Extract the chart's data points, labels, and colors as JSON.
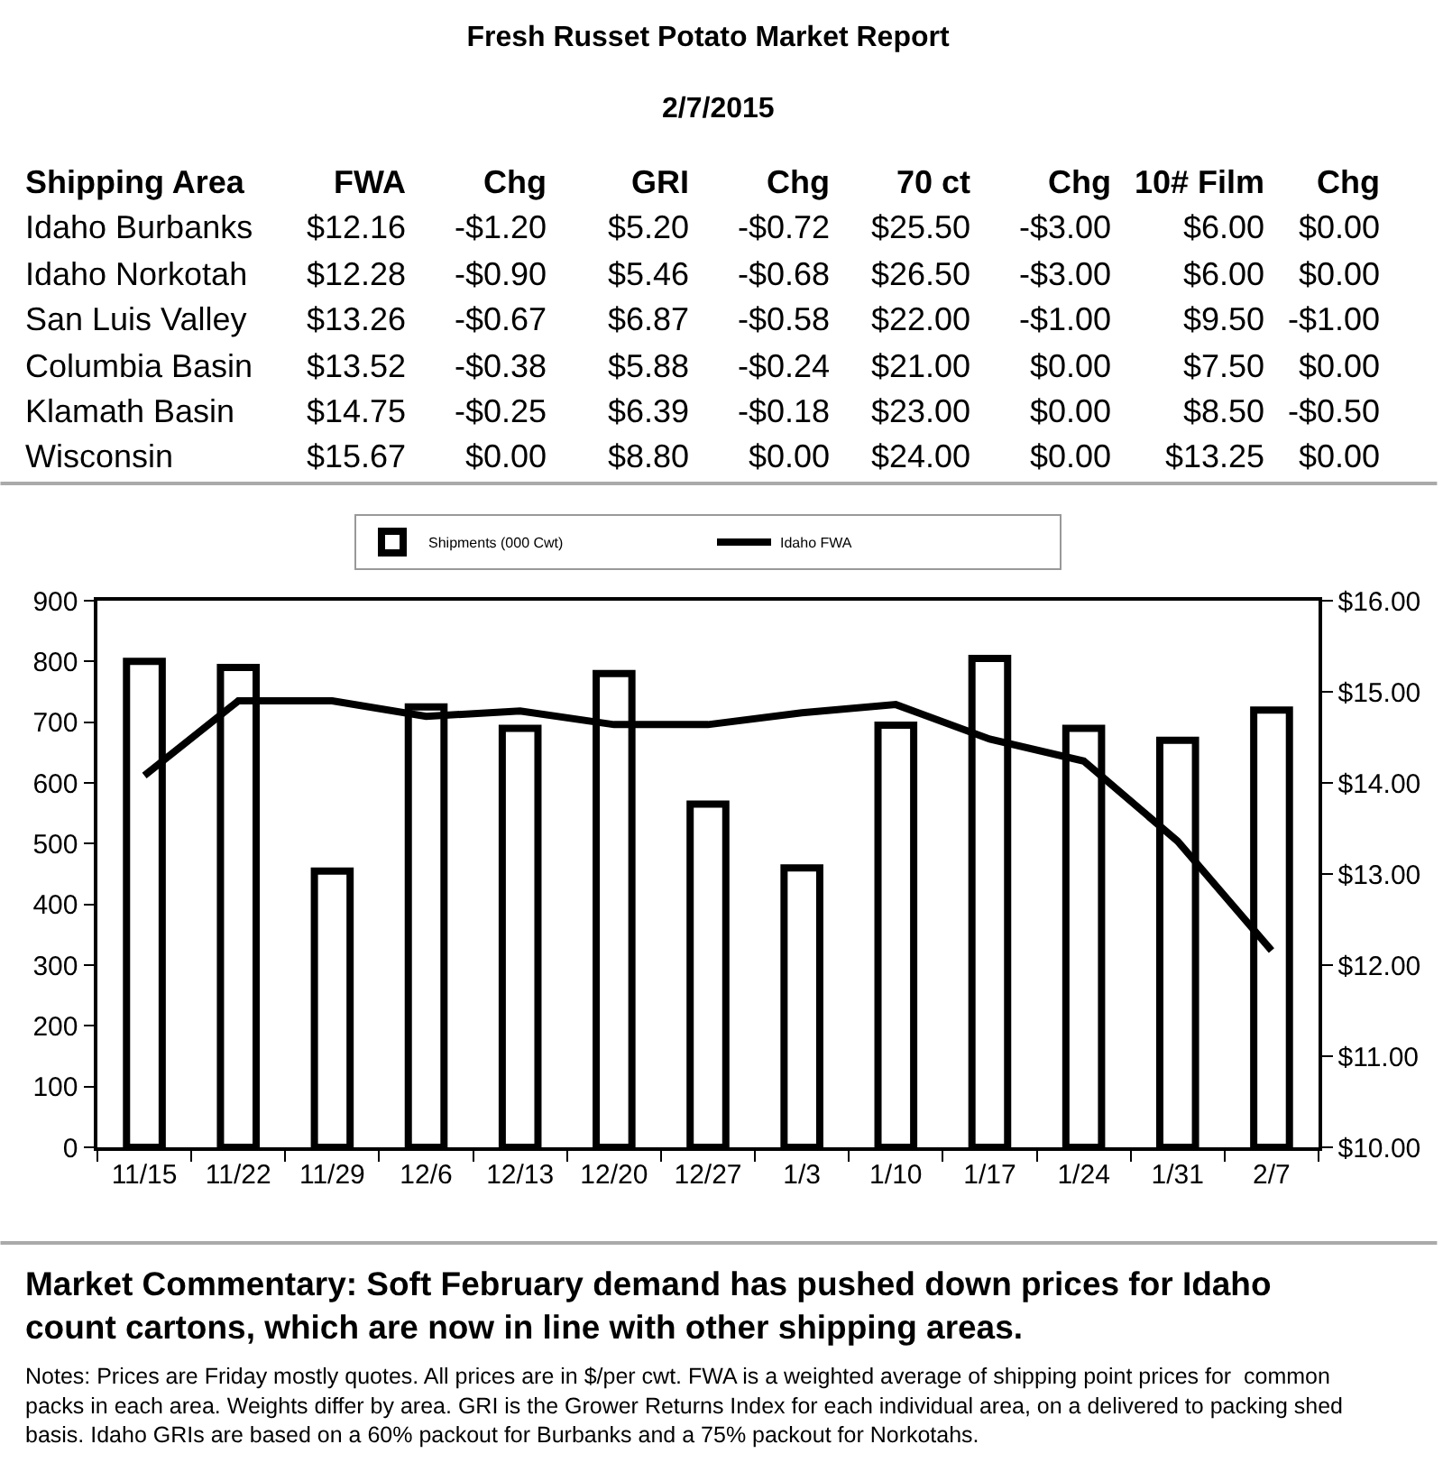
{
  "chart_data": {
    "type": "bar",
    "title": "Fresh Russet Potato Market Report",
    "subtitle": "2/7/2015",
    "categories": [
      "11/15",
      "11/22",
      "11/29",
      "12/6",
      "12/13",
      "12/20",
      "12/27",
      "1/3",
      "1/10",
      "1/17",
      "1/24",
      "1/31",
      "2/7"
    ],
    "series": [
      {
        "name": "Shipments (000 Cwt)",
        "color": "#ffffff",
        "values": [
          800,
          790,
          455,
          725,
          690,
          780,
          565,
          460,
          695,
          805,
          690,
          670,
          720
        ]
      },
      {
        "name": "Idaho FWA",
        "type": "line",
        "axis": "y2",
        "color": "#000000",
        "values": [
          14.08,
          14.9,
          14.9,
          14.73,
          14.79,
          14.64,
          14.64,
          14.77,
          14.86,
          14.48,
          14.24,
          13.36,
          12.16
        ]
      }
    ],
    "ylim": [
      0,
      900
    ],
    "yticks": [
      0,
      100,
      200,
      300,
      400,
      500,
      600,
      700,
      800,
      900
    ],
    "y2lim": [
      10,
      16
    ],
    "y2ticks": [
      {
        "value": 10,
        "label": "$10.00"
      },
      {
        "value": 11,
        "label": "$11.00"
      },
      {
        "value": 12,
        "label": "$12.00"
      },
      {
        "value": 13,
        "label": "$13.00"
      },
      {
        "value": 14,
        "label": "$14.00"
      },
      {
        "value": 15,
        "label": "$15.00"
      },
      {
        "value": 16,
        "label": "$16.00"
      }
    ],
    "legend": "top",
    "line_style": "solid",
    "annotations": [
      "Shipping Area",
      "FWA",
      "Chg",
      "GRI",
      "Chg",
      "70 ct",
      "Chg",
      "10# Film",
      "Chg",
      "Idaho Burbanks",
      "$12.16",
      "-$1.20",
      "$5.20",
      "-$0.72",
      "$25.50",
      "-$3.00",
      "$6.00",
      "$0.00",
      "Idaho Norkotah",
      "$12.28",
      "-$0.90",
      "$5.46",
      "-$0.68",
      "$26.50",
      "-$3.00",
      "$6.00",
      "$0.00",
      "San Luis Valley",
      "$13.26",
      "-$0.67",
      "$6.87",
      "-$0.58",
      "$22.00",
      "-$1.00",
      "$9.50",
      "-$1.00",
      "Columbia Basin",
      "$13.52",
      "-$0.38",
      "$5.88",
      "-$0.24",
      "$21.00",
      "$0.00",
      "$7.50",
      "$0.00",
      "Klamath Basin",
      "$14.75",
      "-$0.25",
      "$6.39",
      "-$0.18",
      "$23.00",
      "$0.00",
      "$8.50",
      "-$0.50",
      "Wisconsin",
      "$15.67",
      "$0.00",
      "$8.80",
      "$0.00",
      "$24.00",
      "$0.00",
      "$13.25",
      "$0.00",
      "Market Commentary: Soft February demand has pushed down prices for Idaho count cartons, which are now in line with other shipping areas.",
      "Notes: Prices are Friday mostly quotes. All prices are in $/per cwt. FWA is a weighted average of shipping point prices for  common packs in each area. Weights differ by area. GRI is the Grower Returns Index for each individual area, on a delivered to packing shed basis. Idaho GRIs are based on a 60% packout for Burbanks and a 75% packout for Norkotahs."
    ]
  }
}
